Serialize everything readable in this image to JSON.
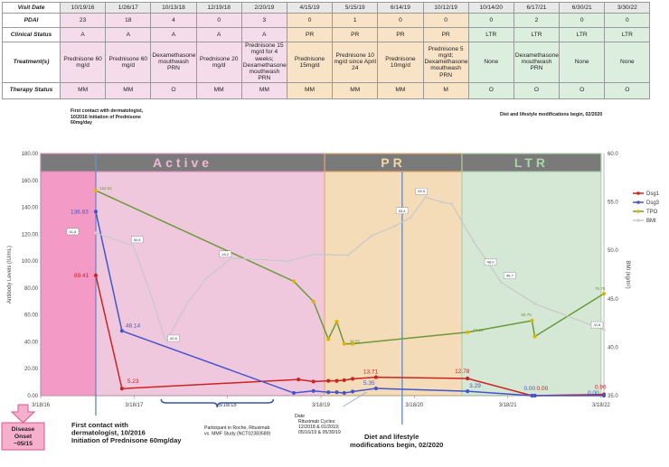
{
  "table": {
    "headers": [
      "Visit Date",
      "PDAI",
      "Clinical Status",
      "Treatment(s)",
      "Therapy Status"
    ],
    "columns": [
      {
        "date": "10/19/16",
        "pdai": "23",
        "status": "A",
        "treatment": "Prednisone 60 mg/d",
        "therapy": "MM",
        "phase": "active"
      },
      {
        "date": "1/26/17",
        "pdai": "18",
        "status": "A",
        "treatment": "Prednisone 60 mg/d",
        "therapy": "MM",
        "phase": "active"
      },
      {
        "date": "10/13/18",
        "pdai": "4",
        "status": "A",
        "treatment": "Dexamethasone mouthwash PRN",
        "therapy": "O",
        "phase": "active"
      },
      {
        "date": "12/19/18",
        "pdai": "0",
        "status": "A",
        "treatment": "Prednisone 20 mg/d",
        "therapy": "MM",
        "phase": "active"
      },
      {
        "date": "2/20/19",
        "pdai": "3",
        "status": "A",
        "treatment": "Prednisone 15 mg/d for 4 weeks; Dexamethasone mouthwash PRN",
        "therapy": "MM",
        "phase": "active"
      },
      {
        "date": "4/15/19",
        "pdai": "0",
        "status": "PR",
        "treatment": "Prednisone 15mg/d",
        "therapy": "MM",
        "phase": "pr"
      },
      {
        "date": "5/15/19",
        "pdai": "1",
        "status": "PR",
        "treatment": "Prednisone 10 mg/d since April 24",
        "therapy": "MM",
        "phase": "pr"
      },
      {
        "date": "6/14/19",
        "pdai": "0",
        "status": "PR",
        "treatment": "Prednisone 10mg/d",
        "therapy": "MM",
        "phase": "pr"
      },
      {
        "date": "10/12/19",
        "pdai": "0",
        "status": "PR",
        "treatment": "Prednisone 5 mg/d; Dexamethasone mouthwash PRN",
        "therapy": "M",
        "phase": "pr"
      },
      {
        "date": "10/14/20",
        "pdai": "0",
        "status": "LTR",
        "treatment": "None",
        "therapy": "O",
        "phase": "ltr"
      },
      {
        "date": "6/17/21",
        "pdai": "2",
        "status": "LTR",
        "treatment": "Dexamethasone mouthwash PRN",
        "therapy": "O",
        "phase": "ltr"
      },
      {
        "date": "6/30/21",
        "pdai": "0",
        "status": "LTR",
        "treatment": "None",
        "therapy": "O",
        "phase": "ltr"
      },
      {
        "date": "3/30/22",
        "pdai": "0",
        "status": "LTR",
        "treatment": "None",
        "therapy": "O",
        "phase": "ltr"
      }
    ],
    "note_left": "First contact with dermatologist, 10/2016 Initiation of Prednisone 60mg/day",
    "note_right": "Diet and lifestyle modifications begin, 02/2020"
  },
  "colors": {
    "dsg1": "#cc2222",
    "dsg3": "#4455cc",
    "tpo": "#6a9a3a",
    "bmi": "#c8c8c8",
    "active": "#f0c8de",
    "active_strong": "#f48fc0",
    "pr": "#f5dcb8",
    "ltr": "#d5e8d5",
    "phase_bar": "#7a7a7a"
  },
  "chart_data": {
    "type": "line",
    "phases": [
      {
        "label": "Active",
        "x0": 2016.21,
        "x1": 2019.25
      },
      {
        "label": "PR",
        "x0": 2019.25,
        "x1": 2020.72
      },
      {
        "label": "LTR",
        "x0": 2020.72,
        "x1": 2022.21
      }
    ],
    "x_ticks": [
      "3/18/16",
      "3/18/17",
      "3/18/18",
      "3/18/19",
      "3/18/20",
      "3/18/21",
      "3/18/22"
    ],
    "ylabel": "Antibody Levels (IU/mL)",
    "y2label": "BMI (kg/m²)",
    "ylim": [
      0,
      180
    ],
    "y2lim": [
      35,
      60
    ],
    "y_ticks": [
      "0.00",
      "20.00",
      "40.00",
      "60.00",
      "80.00",
      "100.00",
      "120.00",
      "140.00",
      "160.00",
      "180.00"
    ],
    "y2_ticks": [
      "35.0",
      "40.0",
      "45.0",
      "50.0",
      "55.0",
      "60.0"
    ],
    "series": [
      {
        "name": "Dsg1",
        "axis": "left",
        "color": "#cc2222",
        "x": [
          2016.8,
          2017.08,
          2018.97,
          2019.13,
          2019.29,
          2019.38,
          2019.46,
          2019.55,
          2019.8,
          2020.78,
          2021.47,
          2021.5,
          2022.24
        ],
        "y": [
          89.41,
          5.23,
          12.0,
          10.5,
          11.0,
          11.0,
          11.5,
          12.5,
          13.71,
          12.78,
          0.0,
          0.0,
          0.96
        ]
      },
      {
        "name": "Dsg3",
        "axis": "left",
        "color": "#4455cc",
        "x": [
          2016.8,
          2017.08,
          2018.92,
          2019.13,
          2019.29,
          2019.38,
          2019.46,
          2019.55,
          2019.8,
          2020.78,
          2021.47,
          2021.5,
          2022.24
        ],
        "y": [
          136.83,
          48.14,
          2.0,
          3.5,
          2.5,
          2.5,
          2.0,
          3.0,
          5.35,
          3.29,
          0.0,
          0.0,
          0.0
        ]
      },
      {
        "name": "TPO",
        "axis": "left",
        "color": "#6a9a3a",
        "x": [
          2016.8,
          2018.92,
          2019.13,
          2019.29,
          2019.38,
          2019.46,
          2019.55,
          2020.78,
          2021.47,
          2021.5,
          2022.24
        ],
        "y": [
          152.54,
          85.0,
          70.0,
          42.0,
          55.0,
          38.55,
          38.55,
          47.13,
          55.75,
          44.0,
          75.78
        ]
      },
      {
        "name": "BMI",
        "axis": "right",
        "color": "#c8c8c8",
        "x": [
          2016.8,
          2017.2,
          2017.37,
          2017.55,
          2017.78,
          2017.97,
          2018.25,
          2018.86,
          2019.14,
          2019.5,
          2019.75,
          2020.0,
          2020.17,
          2020.33,
          2020.5,
          2020.61,
          2020.84,
          2021.05,
          2021.14,
          2021.5,
          2022.24
        ],
        "y": [
          51.8,
          50.5,
          46.0,
          40.6,
          44.5,
          47.0,
          49.2,
          48.9,
          49.6,
          49.5,
          51.5,
          52.5,
          53.4,
          55.5,
          55.0,
          54.8,
          51.0,
          48.0,
          46.7,
          44.5,
          41.8
        ]
      }
    ],
    "data_labels": [
      {
        "text": "136.83",
        "series": "Dsg3",
        "x": 2016.8,
        "y": 136.83
      },
      {
        "text": "89.41",
        "series": "Dsg1",
        "x": 2016.8,
        "y": 89.41
      },
      {
        "text": "5.23",
        "series": "Dsg1",
        "x": 2017.08,
        "y": 5.23
      },
      {
        "text": "48.14",
        "series": "Dsg3",
        "x": 2017.08,
        "y": 48.14
      },
      {
        "text": "152.54",
        "series": "TPO",
        "x": 2016.8,
        "y": 152.54
      },
      {
        "text": "13.71",
        "series": "Dsg1",
        "x": 2019.8,
        "y": 13.71
      },
      {
        "text": "5.35",
        "series": "Dsg3",
        "x": 2019.8,
        "y": 5.35
      },
      {
        "text": "12.78",
        "series": "Dsg1",
        "x": 2020.78,
        "y": 12.78
      },
      {
        "text": "3.29",
        "series": "Dsg3",
        "x": 2020.78,
        "y": 3.29
      },
      {
        "text": "0.00",
        "series": "Dsg3",
        "x": 2021.47,
        "y": 0.0
      },
      {
        "text": "0.00",
        "series": "Dsg1",
        "x": 2021.5,
        "y": 0.0
      },
      {
        "text": "0.96",
        "series": "Dsg1",
        "x": 2022.24,
        "y": 0.96
      },
      {
        "text": "0.00",
        "series": "Dsg3",
        "x": 2022.24,
        "y": 0.0
      },
      {
        "text": "38.55",
        "series": "TPO",
        "x": 2019.46,
        "y": 38.55
      },
      {
        "text": "47.13",
        "series": "TPO",
        "x": 2020.78,
        "y": 47.13
      },
      {
        "text": "55.75",
        "series": "TPO",
        "x": 2021.47,
        "y": 55.75
      },
      {
        "text": "75.78",
        "series": "TPO",
        "x": 2022.24,
        "y": 75.78
      }
    ],
    "bmi_labels": [
      {
        "text": "51.8",
        "x": 2016.8,
        "y": 51.8
      },
      {
        "text": "50.5",
        "x": 2017.2,
        "y": 50.5
      },
      {
        "text": "40.6",
        "x": 2017.55,
        "y": 40.6
      },
      {
        "text": "49.2",
        "x": 2018.25,
        "y": 49.2
      },
      {
        "text": "53.4",
        "x": 2020.17,
        "y": 53.4
      },
      {
        "text": "55.5",
        "x": 2020.33,
        "y": 55.5
      },
      {
        "text": "48.0",
        "x": 2021.05,
        "y": 48.0
      },
      {
        "text": "46.7",
        "x": 2021.14,
        "y": 46.7
      },
      {
        "text": "41.8",
        "x": 2022.24,
        "y": 41.8
      }
    ],
    "legend": [
      "Dsg1",
      "Dsg3",
      "TPO",
      "BMI"
    ],
    "legend_placement": "right",
    "annotations": {
      "disease_onset": "Disease Onset ~05/15",
      "first_contact": "First contact with dermatologist, 10/2016 Initiation of Prednisone 60mg/day",
      "diet": "Diet and lifestyle modifications begin, 02/2020",
      "study": "Participant in Roche, Rituximab vs. MMF Study (NCT02383589)",
      "rituximab_date": "Date",
      "rituximab": "Rituximab Cycles: 12/2018 & 01/2019; 05/16/19 & 05/30/19"
    }
  }
}
